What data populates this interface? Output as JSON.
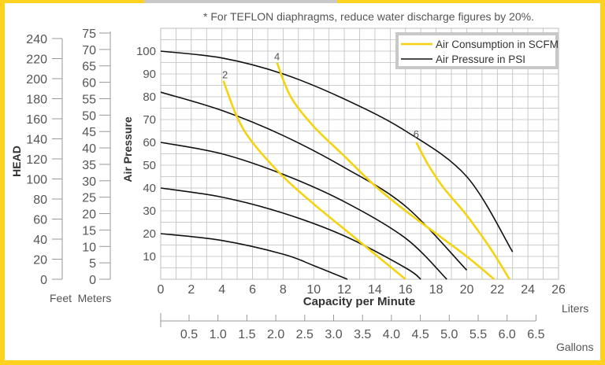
{
  "top_bar": {
    "left_color": "#c8c8c8",
    "right_color": "#ffd21f"
  },
  "colors": {
    "frame": "#ffd21f",
    "panel": "#ffffff",
    "grid": "#bdbdbd",
    "axis_text": "#555555",
    "consumption": "#f5d30f",
    "pressure": "#111111",
    "legend_border": "#c8c8c8"
  },
  "note": "* For TEFLON diaphragms, reduce water discharge figures by 20%.",
  "head_axis": {
    "title": "HEAD",
    "feet": {
      "unit_label": "Feet",
      "ticks": [
        "0",
        "20",
        "40",
        "60",
        "80",
        "100",
        "120",
        "140",
        "160",
        "180",
        "200",
        "220",
        "240"
      ]
    },
    "meters": {
      "unit_label": "Meters",
      "ticks": [
        "0",
        "5",
        "10",
        "15",
        "20",
        "25",
        "30",
        "35",
        "40",
        "45",
        "50",
        "55",
        "60",
        "65",
        "70",
        "75"
      ]
    }
  },
  "gallons_axis": {
    "unit_label": "Gallons",
    "ticks": [
      "0.5",
      "1.0",
      "1.5",
      "2.0",
      "2.5",
      "3.0",
      "3.5",
      "4.0",
      "4.5",
      "5.0",
      "5.5",
      "6.0",
      "6.5"
    ]
  },
  "chart_data": {
    "type": "line",
    "xlabel": "Capacity per Minute",
    "x_unit_label": "Liters",
    "ylabel": "Air Pressure",
    "xlim": [
      0,
      26
    ],
    "ylim": [
      0,
      110
    ],
    "x_ticks": [
      0,
      2,
      4,
      6,
      8,
      10,
      12,
      14,
      16,
      18,
      20,
      22,
      24,
      26
    ],
    "y_ticks": [
      10,
      20,
      30,
      40,
      50,
      60,
      70,
      80,
      90,
      100
    ],
    "grid": true,
    "legend": {
      "placement": "top-right",
      "entries": [
        {
          "label": "Air Consumption in SCFM",
          "color": "#f5d30f"
        },
        {
          "label": "Air Pressure in PSI",
          "color": "#111111"
        }
      ]
    },
    "pressure_curves": [
      {
        "points": [
          [
            0,
            100
          ],
          [
            4,
            97
          ],
          [
            8,
            90
          ],
          [
            12,
            79
          ],
          [
            16,
            65
          ],
          [
            20,
            45
          ],
          [
            23,
            12
          ]
        ]
      },
      {
        "points": [
          [
            0,
            82
          ],
          [
            4,
            74
          ],
          [
            8,
            63
          ],
          [
            12,
            49
          ],
          [
            16,
            32
          ],
          [
            20,
            4
          ]
        ]
      },
      {
        "points": [
          [
            0,
            60
          ],
          [
            4,
            55
          ],
          [
            8,
            46
          ],
          [
            12,
            34
          ],
          [
            16,
            18
          ],
          [
            18.7,
            0
          ]
        ]
      },
      {
        "points": [
          [
            0,
            40
          ],
          [
            4,
            36
          ],
          [
            8,
            29
          ],
          [
            12,
            19
          ],
          [
            16,
            5
          ],
          [
            17,
            0
          ]
        ]
      },
      {
        "points": [
          [
            0,
            20
          ],
          [
            4,
            17
          ],
          [
            8,
            11
          ],
          [
            10,
            6
          ],
          [
            12.2,
            0
          ]
        ]
      }
    ],
    "consumption_curves": [
      {
        "label": "2",
        "label_at": [
          4.2,
          87
        ],
        "points": [
          [
            4.1,
            87
          ],
          [
            5,
            71
          ],
          [
            6,
            60
          ],
          [
            8,
            45
          ],
          [
            10,
            33
          ],
          [
            12,
            22
          ],
          [
            14,
            11
          ],
          [
            16,
            0
          ]
        ]
      },
      {
        "label": "4",
        "label_at": [
          7.6,
          95
        ],
        "points": [
          [
            7.6,
            95
          ],
          [
            8.5,
            80
          ],
          [
            10,
            67
          ],
          [
            12,
            54
          ],
          [
            14,
            41
          ],
          [
            16,
            30
          ],
          [
            18,
            20
          ],
          [
            20,
            10
          ],
          [
            21.8,
            0
          ]
        ]
      },
      {
        "label": "6",
        "label_at": [
          16.7,
          61
        ],
        "points": [
          [
            16.7,
            60
          ],
          [
            17.5,
            50
          ],
          [
            18.5,
            40
          ],
          [
            20,
            28
          ],
          [
            21.5,
            14
          ],
          [
            22.8,
            0
          ]
        ]
      }
    ]
  }
}
